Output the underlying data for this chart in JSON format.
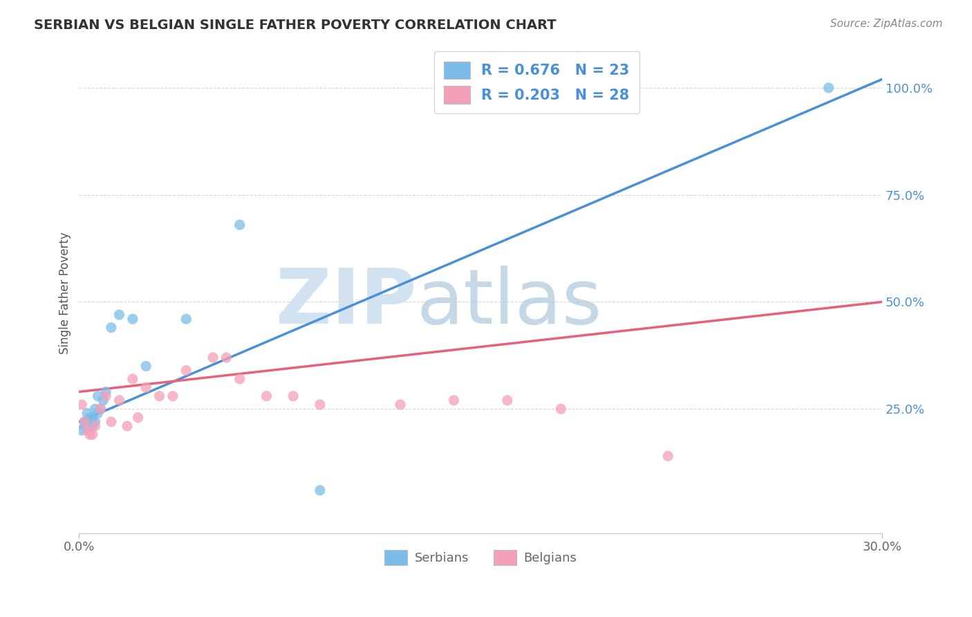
{
  "title": "SERBIAN VS BELGIAN SINGLE FATHER POVERTY CORRELATION CHART",
  "source": "Source: ZipAtlas.com",
  "xlabel": "",
  "ylabel": "Single Father Poverty",
  "xlim": [
    0.0,
    0.3
  ],
  "ylim": [
    -0.04,
    1.08
  ],
  "xtick_labels": [
    "0.0%",
    "30.0%"
  ],
  "ytick_positions": [
    0.25,
    0.5,
    0.75,
    1.0
  ],
  "ytick_labels": [
    "25.0%",
    "50.0%",
    "75.0%",
    "100.0%"
  ],
  "r_serbian": 0.676,
  "n_serbian": 23,
  "r_belgian": 0.203,
  "n_belgian": 28,
  "serbian_color": "#7bbde8",
  "belgian_color": "#f4a0b8",
  "serbian_line_color": "#4a90d9",
  "belgian_line_color": "#e8607a",
  "watermark_zip_color": "#cddff0",
  "watermark_atlas_color": "#b8cfe0",
  "legend_text_color": "#4a90d9",
  "background_color": "#ffffff",
  "grid_color": "#cccccc",
  "title_color": "#333333",
  "source_color": "#888888",
  "tick_color": "#666666",
  "ylabel_color": "#555555",
  "serbian_x": [
    0.001,
    0.002,
    0.002,
    0.003,
    0.003,
    0.004,
    0.005,
    0.005,
    0.006,
    0.006,
    0.007,
    0.007,
    0.008,
    0.009,
    0.01,
    0.012,
    0.015,
    0.02,
    0.025,
    0.04,
    0.06,
    0.09,
    0.28
  ],
  "serbian_y": [
    0.2,
    0.21,
    0.22,
    0.22,
    0.24,
    0.23,
    0.21,
    0.23,
    0.22,
    0.25,
    0.24,
    0.28,
    0.25,
    0.27,
    0.29,
    0.44,
    0.47,
    0.46,
    0.35,
    0.46,
    0.68,
    0.06,
    1.0
  ],
  "belgian_x": [
    0.001,
    0.002,
    0.003,
    0.004,
    0.005,
    0.006,
    0.008,
    0.01,
    0.012,
    0.015,
    0.018,
    0.02,
    0.022,
    0.025,
    0.03,
    0.035,
    0.04,
    0.05,
    0.055,
    0.06,
    0.07,
    0.08,
    0.09,
    0.12,
    0.14,
    0.16,
    0.18,
    0.22
  ],
  "belgian_y": [
    0.26,
    0.22,
    0.2,
    0.19,
    0.19,
    0.21,
    0.25,
    0.28,
    0.22,
    0.27,
    0.21,
    0.32,
    0.23,
    0.3,
    0.28,
    0.28,
    0.34,
    0.37,
    0.37,
    0.32,
    0.28,
    0.28,
    0.26,
    0.26,
    0.27,
    0.27,
    0.25,
    0.14
  ],
  "serbian_line_x0": 0.0,
  "serbian_line_y0": 0.22,
  "serbian_line_x1": 0.3,
  "serbian_line_y1": 1.02,
  "belgian_line_x0": 0.0,
  "belgian_line_y0": 0.29,
  "belgian_line_x1": 0.3,
  "belgian_line_y1": 0.5
}
